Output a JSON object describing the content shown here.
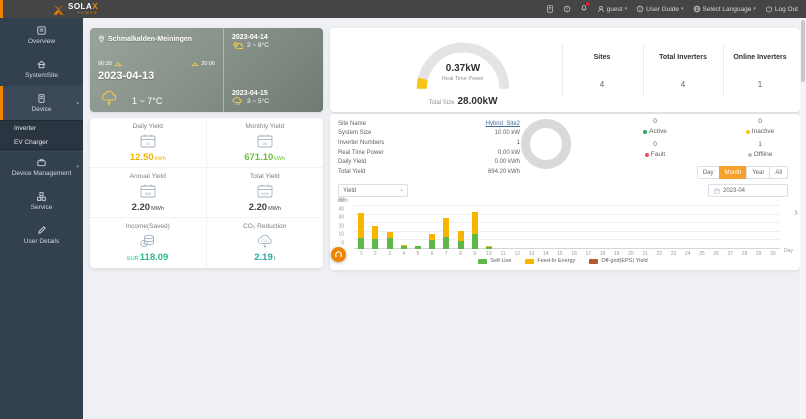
{
  "colors": {
    "accent": "#f08300",
    "button_orange": "#f6a12d",
    "gauge_fill": "#f5c515",
    "daily_yield": "#f0b400",
    "monthly_yield": "#67c23a",
    "neutral_value": "#404347",
    "income": "#2eb886",
    "co2": "#2ea8a0"
  },
  "topbar": {
    "brand_name": "SOLA",
    "brand_x": "X",
    "brand_sub": "POWER",
    "user": "guest",
    "user_guide": "User Guide",
    "select_language": "Select Language",
    "logout": "Log Out"
  },
  "sidebar": {
    "items": [
      {
        "label": "Overview"
      },
      {
        "label": "SystemSite"
      },
      {
        "label": "Device"
      },
      {
        "label": "Device Management"
      },
      {
        "label": "Service"
      },
      {
        "label": "User Details"
      }
    ],
    "device_children": [
      {
        "label": "Inverter"
      },
      {
        "label": "EV Charger"
      }
    ]
  },
  "weather": {
    "location": "Schmalkalden-Meiningen",
    "sunrise": "06:30",
    "sunset": "20:06",
    "date": "2023-04-13",
    "temp_range": "1 ~ 7°C",
    "forecast": [
      {
        "date": "2023-04-14",
        "temp": "2 ~ 8°C"
      },
      {
        "date": "2023-04-15",
        "temp": "3 ~ 5°C"
      }
    ]
  },
  "stats": {
    "cells": [
      {
        "label": "Daily Yield",
        "value": "12.50",
        "unit": "kWh"
      },
      {
        "label": "Monthly Yield",
        "value": "671.10",
        "unit": "kWh"
      },
      {
        "label": "Annual Yield",
        "value": "2.20",
        "unit": "MWh"
      },
      {
        "label": "Total Yield",
        "value": "2.20",
        "unit": "MWh"
      },
      {
        "label": "Income(Saved)",
        "value": "118.09",
        "unit_prefix": "EUR"
      },
      {
        "label": "CO₂ Reduction",
        "value": "2.19",
        "unit": "t"
      }
    ]
  },
  "overview": {
    "gauge_value": "0.37kW",
    "gauge_label": "Real Time Power",
    "total_label": "Total Size",
    "total_value": "28.00kW",
    "summary": [
      {
        "label": "Sites",
        "value": "4"
      },
      {
        "label": "Total Inverters",
        "value": "4"
      },
      {
        "label": "Online Inverters",
        "value": "1"
      }
    ]
  },
  "site": {
    "rows": [
      {
        "label": "Site Name",
        "value": "Hybrid_Site2"
      },
      {
        "label": "System Size",
        "value": "10.00 kW"
      },
      {
        "label": "Inverter Numbers",
        "value": "1"
      },
      {
        "label": "Real Time Power",
        "value": "0.00 kW"
      },
      {
        "label": "Daily Yield",
        "value": "0.00 kWh"
      },
      {
        "label": "Total Yield",
        "value": "694.20 kWh"
      }
    ],
    "status": [
      {
        "label": "Active",
        "value": "0",
        "color": "#2daa5e"
      },
      {
        "label": "Inactive",
        "value": "0",
        "color": "#f5c515"
      },
      {
        "label": "Fault",
        "value": "0",
        "color": "#ef4864"
      },
      {
        "label": "Offline",
        "value": "1",
        "color": "#bfbfbf"
      }
    ]
  },
  "chart_controls": {
    "period_buttons": [
      "Day",
      "Month",
      "Year",
      "All"
    ],
    "active_period": "Month",
    "metric_select": "Yield",
    "date_value": "2023-04"
  },
  "chart_data": {
    "type": "bar",
    "stacked": true,
    "title": "",
    "xlabel": "Day",
    "ylabel": "kWh",
    "ylim": [
      0,
      50
    ],
    "yticks": [
      0,
      10,
      20,
      30,
      40,
      50
    ],
    "x": [
      1,
      2,
      3,
      4,
      5,
      6,
      7,
      8,
      9,
      10,
      11,
      12,
      13,
      14,
      15,
      16,
      17,
      18,
      19,
      20,
      21,
      22,
      23,
      24,
      25,
      26,
      27,
      28,
      29,
      30
    ],
    "series": [
      {
        "name": "Self-Use",
        "color": "#5eb849",
        "values": [
          13,
          12,
          13,
          3,
          3,
          10,
          14,
          9,
          17,
          2,
          0,
          0,
          0,
          0,
          0,
          0,
          0,
          0,
          0,
          0,
          0,
          0,
          0,
          0,
          0,
          0,
          0,
          0,
          0,
          0
        ]
      },
      {
        "name": "Feed-In Energy",
        "color": "#f7b500",
        "values": [
          29,
          15,
          7,
          2,
          1,
          8,
          22,
          12,
          26,
          1,
          0,
          0,
          0,
          0,
          0,
          0,
          0,
          0,
          0,
          0,
          0,
          0,
          0,
          0,
          0,
          0,
          0,
          0,
          0,
          0
        ]
      },
      {
        "name": "Off-grid(EPS) Yield",
        "color": "#b3592f",
        "values": [
          0,
          0,
          0,
          0,
          0,
          0,
          0,
          0,
          0,
          0,
          0,
          0,
          0,
          0,
          0,
          0,
          0,
          0,
          0,
          0,
          0,
          0,
          0,
          0,
          0,
          0,
          0,
          0,
          0,
          0
        ]
      }
    ],
    "legend_position": "bottom",
    "grid": true
  }
}
